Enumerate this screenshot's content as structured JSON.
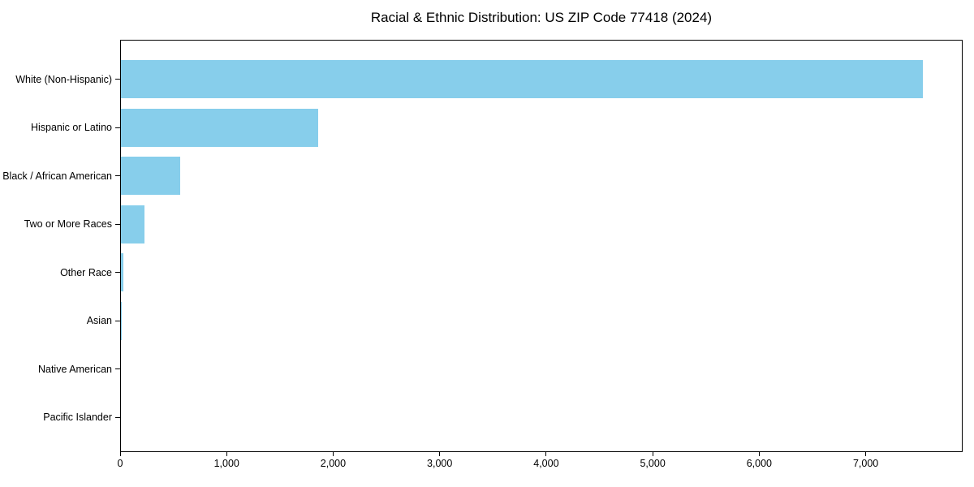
{
  "chart_data": {
    "type": "bar",
    "orientation": "horizontal",
    "title": "Racial & Ethnic Distribution: US ZIP Code 77418 (2024)",
    "categories": [
      "White (Non-Hispanic)",
      "Hispanic or Latino",
      "Black / African American",
      "Two or More Races",
      "Other Race",
      "Asian",
      "Native American",
      "Pacific Islander"
    ],
    "values": [
      7530,
      1855,
      555,
      220,
      25,
      8,
      0,
      0
    ],
    "xlabel": "",
    "ylabel": "",
    "xlim": [
      0,
      7910
    ],
    "xticks": [
      0,
      1000,
      2000,
      3000,
      4000,
      5000,
      6000,
      7000
    ],
    "xtick_labels": [
      "0",
      "1,000",
      "2,000",
      "3,000",
      "4,000",
      "5,000",
      "6,000",
      "7,000"
    ],
    "bar_color": "#87CEEB",
    "axis_color": "#000000",
    "text_color": "#000000",
    "background_color": "#ffffff",
    "grid": false,
    "legend": "none"
  }
}
